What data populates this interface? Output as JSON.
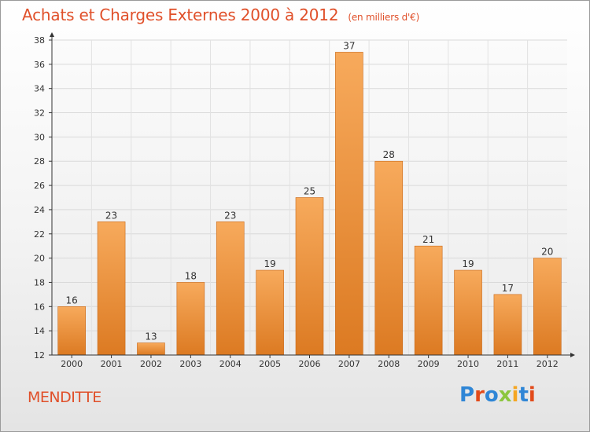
{
  "title": "Achats et Charges Externes 2000 à 2012",
  "subtitle": "(en milliers d'€)",
  "commune": "MENDITTE",
  "logo": {
    "text": "Proxiti",
    "parts": [
      "P",
      "r",
      "o",
      "x",
      "i",
      "t",
      "i"
    ]
  },
  "colors": {
    "title": "#e0502a",
    "bar_light": "#f6a85a",
    "bar_dark": "#dd7b24",
    "axis": "#333333"
  },
  "chart_data": {
    "type": "bar",
    "categories": [
      "2000",
      "2001",
      "2002",
      "2003",
      "2004",
      "2005",
      "2006",
      "2007",
      "2008",
      "2009",
      "2010",
      "2011",
      "2012"
    ],
    "values": [
      16,
      23,
      13,
      18,
      23,
      19,
      25,
      37,
      28,
      21,
      19,
      17,
      20
    ],
    "data_labels": [
      "16",
      "23",
      "13",
      "18",
      "23",
      "19",
      "25",
      "37",
      "28",
      "21",
      "19",
      "17",
      "20"
    ],
    "title": "Achats et Charges Externes 2000 à 2012",
    "xlabel": "",
    "ylabel": "",
    "ylim": [
      12,
      38
    ],
    "yticks": [
      12,
      14,
      16,
      18,
      20,
      22,
      24,
      26,
      28,
      30,
      32,
      34,
      36,
      38
    ],
    "grid": true,
    "legend": "none"
  }
}
